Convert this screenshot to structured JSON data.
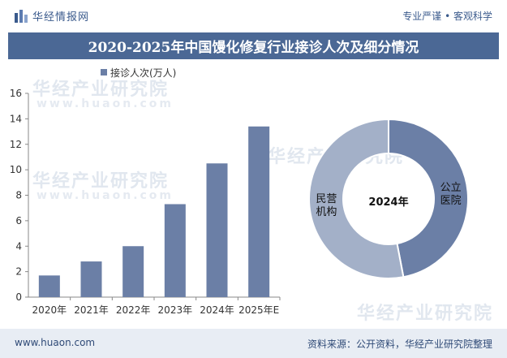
{
  "header": {
    "logo_text": "华经情报网",
    "tagline": "专业严谨 • 客观科学"
  },
  "title": "2020-2025年中国馒化修复行业接诊人次及细分情况",
  "footer": {
    "url": "www.huaon.com",
    "source": "资料来源：公开资料，华经产业研究院整理"
  },
  "watermarks": {
    "brand": "华经产业研究院",
    "url": "www.huaon.com"
  },
  "colors": {
    "bar": "#6b7fa6",
    "donut_public": "#6b7fa6",
    "donut_private": "#a3b0c8",
    "title_bg": "#4b6895"
  },
  "chart_data": [
    {
      "type": "bar",
      "categories": [
        "2020年",
        "2021年",
        "2022年",
        "2023年",
        "2024年",
        "2025年E"
      ],
      "series": [
        {
          "name": "接诊人次(万人)",
          "values": [
            1.7,
            2.8,
            4.0,
            7.3,
            10.5,
            13.4
          ]
        }
      ],
      "ylim": [
        0,
        16
      ],
      "yticks": [
        0,
        2,
        4,
        6,
        8,
        10,
        12,
        14,
        16
      ],
      "legend": "top",
      "grid": false
    },
    {
      "type": "pie",
      "center_label": "2024年",
      "slices": [
        {
          "label": "公立医院",
          "label_lines": [
            "公立",
            "医院"
          ],
          "value": 0.47
        },
        {
          "label": "民营机构",
          "label_lines": [
            "民营",
            "机构"
          ],
          "value": 0.53
        }
      ]
    }
  ]
}
